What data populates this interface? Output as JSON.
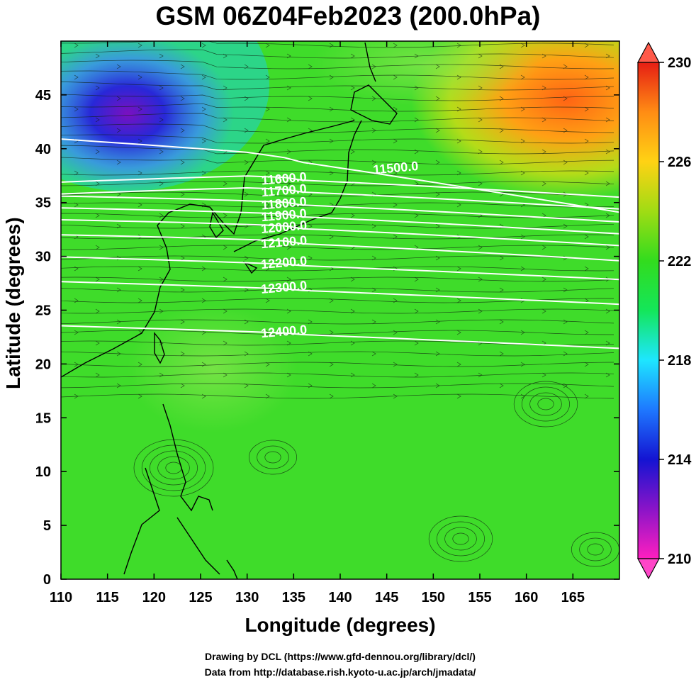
{
  "title": "GSM 06Z04Feb2023 (200.0hPa)",
  "axes": {
    "xlabel": "Longitude (degrees)",
    "ylabel": "Latitude  (degrees)",
    "xlim": [
      110,
      170
    ],
    "ylim": [
      0,
      50
    ],
    "xticks": [
      "110",
      "115",
      "120",
      "125",
      "130",
      "135",
      "140",
      "145",
      "150",
      "155",
      "160",
      "165"
    ],
    "yticks": [
      "0",
      "5",
      "10",
      "15",
      "20",
      "25",
      "30",
      "35",
      "40",
      "45"
    ]
  },
  "colorbar": {
    "ticks": [
      "210",
      "214",
      "218",
      "222",
      "226",
      "230"
    ],
    "range": [
      210,
      230
    ],
    "colors": [
      "#ff1fbf",
      "#8a14c8",
      "#1414d2",
      "#1e78ff",
      "#1ee6ff",
      "#14e65a",
      "#32dc1e",
      "#a0dc14",
      "#ffd214",
      "#ff8c14",
      "#e61e14"
    ]
  },
  "height_contours": [
    {
      "label": "11500.0",
      "lat": 38.0
    },
    {
      "label": "11600.0",
      "lat": 36.7
    },
    {
      "label": "11700.0",
      "lat": 35.6
    },
    {
      "label": "11800.0",
      "lat": 34.4
    },
    {
      "label": "11900.0",
      "lat": 33.3
    },
    {
      "label": "12000.0",
      "lat": 32.2
    },
    {
      "label": "12100.0",
      "lat": 30.8
    },
    {
      "label": "12200.0",
      "lat": 28.9
    },
    {
      "label": "12300.0",
      "lat": 26.6
    },
    {
      "label": "12400.0",
      "lat": 22.5
    }
  ],
  "credits": {
    "line1": "Drawing by DCL (https://www.gfd-dennou.org/library/dcl/)",
    "line2": "Data from http://database.rish.kyoto-u.ac.jp/arch/jmadata/"
  }
}
